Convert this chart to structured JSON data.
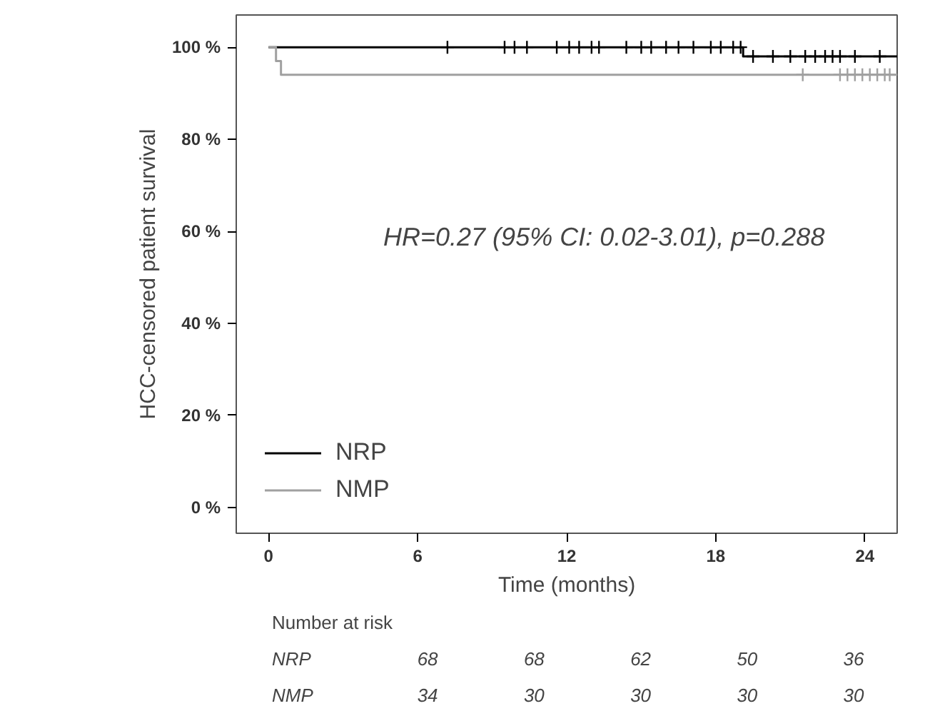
{
  "chart_data": {
    "type": "step",
    "xlabel": "Time (months)",
    "ylabel": "HCC-censored patient survival",
    "xlim": [
      -1.3,
      25.3
    ],
    "ylim": [
      -5.6,
      107
    ],
    "xticks": [
      0,
      6,
      12,
      18,
      24
    ],
    "yticks": [
      {
        "value": 0,
        "label": "0 %"
      },
      {
        "value": 20,
        "label": "20 %"
      },
      {
        "value": 40,
        "label": "40 %"
      },
      {
        "value": 60,
        "label": "60 %"
      },
      {
        "value": 80,
        "label": "80 %"
      },
      {
        "value": 100,
        "label": "100 %"
      }
    ],
    "grid": false,
    "legend": "bottom left",
    "line_style": "solid",
    "series": [
      {
        "name": "NRP",
        "color": "#000000",
        "x": [
          0,
          19.1,
          25.3
        ],
        "values": [
          100,
          98,
          98
        ]
      },
      {
        "name": "NMP",
        "color": "#a0a0a0",
        "x": [
          0,
          0.3,
          0.5,
          25.3
        ],
        "values": [
          100,
          97,
          94,
          94
        ]
      },
      {
        "color": "#000000",
        "type": "scatter",
        "marker": "cross",
        "x": [
          7.2,
          9.5,
          9.9,
          10.4,
          11.6,
          12.1,
          12.5,
          13,
          13.3,
          14.4,
          15,
          15.4,
          16,
          16.5,
          17.1,
          17.8,
          18.2,
          18.7,
          19.0
        ],
        "values": [
          100,
          100,
          100,
          100,
          100,
          100,
          100,
          100,
          100,
          100,
          100,
          100,
          100,
          100,
          100,
          100,
          100,
          100,
          100
        ]
      },
      {
        "color": "#000000",
        "type": "scatter",
        "marker": "cross",
        "x": [
          19.5,
          20.3,
          21,
          21.6,
          22,
          22.4,
          22.7,
          23,
          23.6,
          24.6
        ],
        "values": [
          98,
          98,
          98,
          98,
          98,
          98,
          98,
          98,
          98,
          98
        ]
      },
      {
        "color": "#a0a0a0",
        "type": "scatter",
        "marker": "cross",
        "x": [
          21.5,
          23,
          23.3,
          23.6,
          23.9,
          24.2,
          24.5,
          24.8,
          25
        ],
        "values": [
          94,
          94,
          94,
          94,
          94,
          94,
          94,
          94,
          94
        ]
      }
    ],
    "annotations": [
      "HR=0.27 (95% CI: 0.02-3.01), p=0.288",
      "Number at risk",
      "NRP",
      "68",
      "68",
      "62",
      "50",
      "36",
      "NMP",
      "34",
      "30",
      "30",
      "30",
      "30"
    ]
  }
}
